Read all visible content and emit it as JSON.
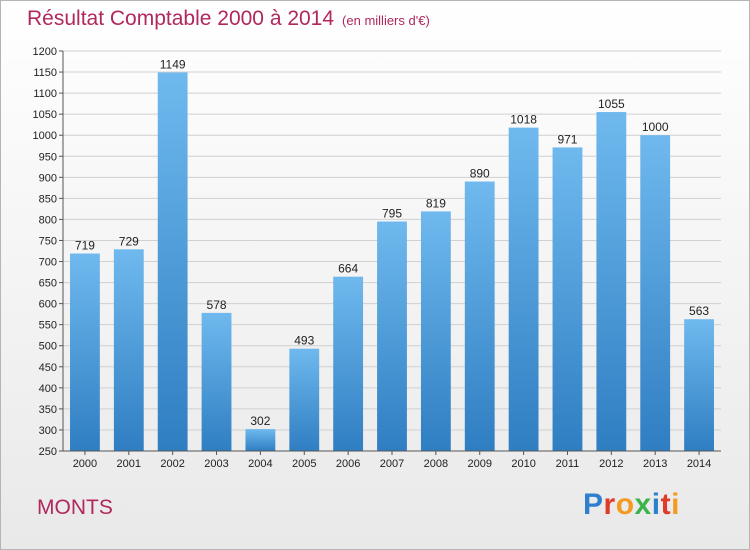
{
  "header": {
    "title": "Résultat Comptable 2000 à 2014",
    "unit": "(en milliers d'€)"
  },
  "footer": {
    "place": "MONTS",
    "logo_letters": [
      "P",
      "r",
      "o",
      "x",
      "i",
      "t",
      "i"
    ],
    "logo_colors": [
      "#2f7fcf",
      "#e03a28",
      "#f39a1f",
      "#3bb54a",
      "#2f7fcf",
      "#e03a28",
      "#f39a1f"
    ]
  },
  "colors": {
    "bar": "#4b9fdf",
    "bar_light": "#6fb9ee",
    "bar_dark": "#2f7ec2",
    "title": "#b0285e"
  },
  "chart_data": {
    "type": "bar",
    "categories": [
      "2000",
      "2001",
      "2002",
      "2003",
      "2004",
      "2005",
      "2006",
      "2007",
      "2008",
      "2009",
      "2010",
      "2011",
      "2012",
      "2013",
      "2014"
    ],
    "values": [
      719,
      729,
      1149,
      578,
      302,
      493,
      664,
      795,
      819,
      890,
      1018,
      971,
      1055,
      1000,
      563
    ],
    "data_labels": [
      "719",
      "729",
      "1149",
      "578",
      "302",
      "493",
      "664",
      "795",
      "819",
      "890",
      "1018",
      "971",
      "1055",
      "1000",
      "563"
    ],
    "title": "Résultat Comptable 2000 à 2014",
    "subtitle": "(en milliers d'€)",
    "ylim": [
      250,
      1200
    ],
    "yticks": [
      250,
      300,
      350,
      400,
      450,
      500,
      550,
      600,
      650,
      700,
      750,
      800,
      850,
      900,
      950,
      1000,
      1050,
      1100,
      1150,
      1200
    ],
    "grid": "horizontal",
    "legend": "none"
  }
}
